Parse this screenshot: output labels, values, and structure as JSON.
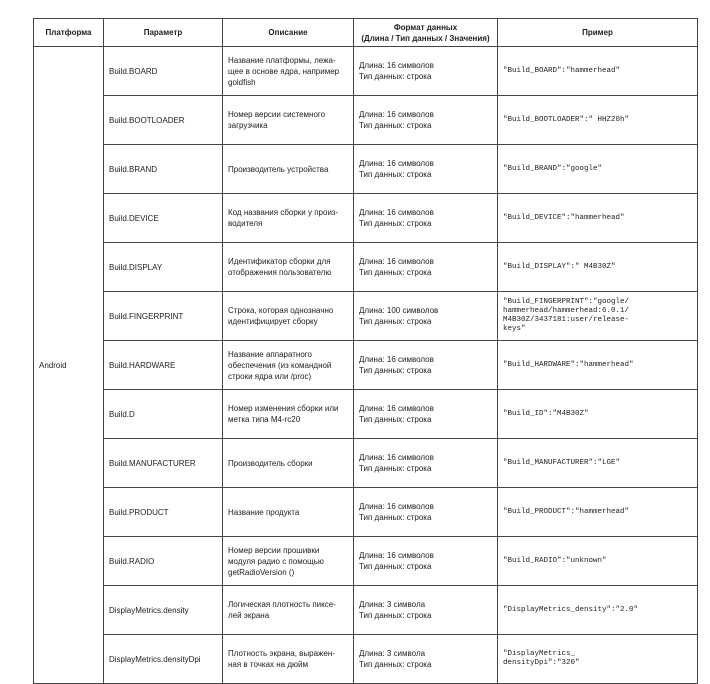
{
  "table": {
    "headers": [
      "Платформа",
      "Параметр",
      "Описание",
      "Формат данных",
      "Пример"
    ],
    "format_note": "(Длина / Тип данных / Значения)",
    "platform": "Android",
    "rows": [
      {
        "parameter": "Build.BOARD",
        "description": "Название платформы, лежа-\nщее в основе ядра, например\ngoldfish",
        "format": "Длина: 16 символов\nТип данных: строка",
        "example": "\"Build_BOARD\":\"hammerhead\""
      },
      {
        "parameter": "Build.BOOTLOADER",
        "description": "Номер версии системного\nзагрузчика",
        "format": "Длина: 16 символов\nТип данных: строка",
        "example": "\"Build_BOOTLOADER\":\" HHZ20h\""
      },
      {
        "parameter": "Build.BRAND",
        "description": "Производитель устройства",
        "format": "Длина: 16 символов\nТип данных: строка",
        "example": "\"Build_BRAND\":\"google\""
      },
      {
        "parameter": "Build.DEVICE",
        "description": "Код названия сборки у произ-\nводителя",
        "format": "Длина: 16 символов\nТип данных: строка",
        "example": "\"Build_DEVICE\":\"hammerhead\""
      },
      {
        "parameter": "Build.DISPLAY",
        "description": "Идентификатор сборки для\nотображения пользователю",
        "format": "Длина: 16 символов\nТип данных: строка",
        "example": "\"Build_DISPLAY\":\" M4B30Z\""
      },
      {
        "parameter": "Build.FINGERPRINT",
        "description": "Строка, которая однозначно\nидентифицирует сборку",
        "format": "Длина: 100 символов\nТип данных: строка",
        "example": "\"Build_FINGERPRINT\":\"google/\nhammerhead/hammerhead:6.0.1/\nM4B30Z/3437181:user/release-\nkeys\""
      },
      {
        "parameter": "Build.HARDWARE",
        "description": "Название аппаратного\nобеспечения (из командной\nстроки ядра или /proc)",
        "format": "Длина: 16 символов\nТип данных: строка",
        "example": "\"Build_HARDWARE\":\"hammerhead\""
      },
      {
        "parameter": "Build.D",
        "description": "Номер изменения сборки или\nметка типа M4-rc20",
        "format": "Длина: 16 символов\nТип данных: строка",
        "example": "\"Build_ID\":\"M4B30Z\""
      },
      {
        "parameter": "Build.MANUFACTURER",
        "description": "Производитель сборки",
        "format": "Длина: 16 символов\nТип данных: строка",
        "example": "\"Build_MANUFACTURER\":\"LGE\""
      },
      {
        "parameter": "Build.PRODUCT",
        "description": "Название продукта",
        "format": "Длина: 16 символов\nТип данных: строка",
        "example": "\"Build_PRODUCT\":\"hammerhead\""
      },
      {
        "parameter": "Build.RADIO",
        "description": "Номер версии прошивки\nмодуля радио с помощью\ngetRadioVersion ()",
        "format": "Длина: 16 символов\nТип данных: строка",
        "example": "\"Build_RADIO\":\"unknown\""
      },
      {
        "parameter": "DisplayMetrics.density",
        "description": "Логическая плотность пиксе-\nлей экрана",
        "format": "Длина: 3 символа\nТип данных: строка",
        "example": "\"DisplayMetrics_density\":\"2.0\""
      },
      {
        "parameter": "DisplayMetrics.densityDpi",
        "description": "Плотность экрана, выражен-\nная в точках на дюйм",
        "format": "Длина: 3 символа\nТип данных: строка",
        "example": "\"DisplayMetrics_\ndensityDpi\":\"320\""
      }
    ]
  }
}
